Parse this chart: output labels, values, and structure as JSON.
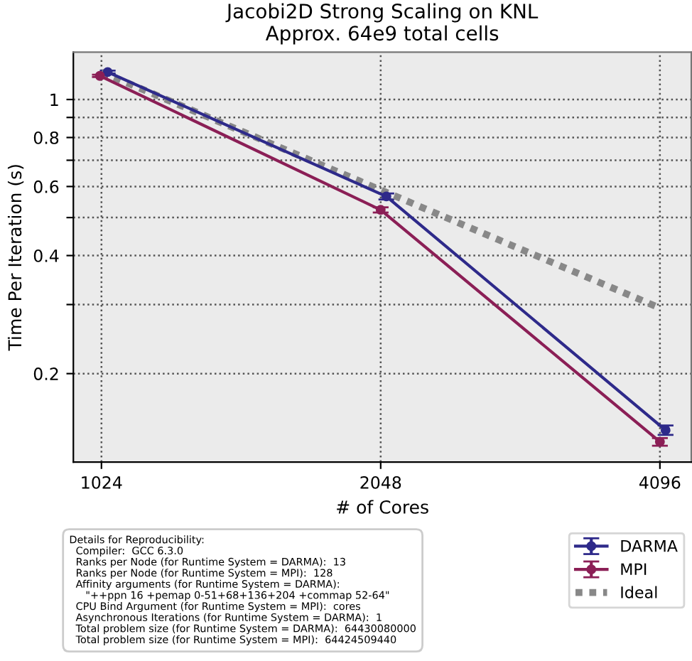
{
  "chart_data": {
    "type": "line",
    "title": "Jacobi2D Strong Scaling on KNL\nApprox. 64e9 total cells",
    "xlabel": "# of Cores",
    "ylabel": "Time Per Iteration (s)",
    "log": "xy",
    "xlim": [
      955,
      4428
    ],
    "xticks": [
      1024,
      2048,
      4096
    ],
    "ylim": [
      0.119,
      1.32
    ],
    "yticks": [
      {
        "value": 0.2,
        "label": "0.2"
      },
      {
        "value": 0.3,
        "label": null
      },
      {
        "value": 0.4,
        "label": "0.4"
      },
      {
        "value": 0.5,
        "label": null
      },
      {
        "value": 0.6,
        "label": "0.6"
      },
      {
        "value": 0.7,
        "label": null
      },
      {
        "value": 0.8,
        "label": "0.8"
      },
      {
        "value": 0.9,
        "label": null
      },
      {
        "value": 1,
        "label": "1"
      }
    ],
    "grid": true,
    "legend": "bottom right",
    "series": [
      {
        "name": "DARMA",
        "color": "#2e2a8a",
        "x": [
          1040,
          2077,
          4154
        ],
        "marker": "circle",
        "values": [
          1.175,
          0.566,
          0.1435
        ],
        "errors": [
          0.01,
          0.01,
          0.004
        ]
      },
      {
        "name": "MPI",
        "color": "#8b1f56",
        "x": [
          1020,
          2048,
          4096
        ],
        "marker": "circle",
        "values": [
          1.149,
          0.523,
          0.134
        ],
        "errors": [
          0.008,
          0.008,
          0.003
        ]
      },
      {
        "name": "Ideal",
        "color": "#888888",
        "type": "line",
        "line_style": "dotted",
        "x": [
          1024,
          2048,
          4096
        ],
        "values": [
          1.175,
          0.588,
          0.294
        ]
      }
    ],
    "annotations": [
      "Details for Reproducibility:\n  Compiler:  GCC 6.3.0\n  Ranks per Node (for Runtime System = DARMA):  13\n  Ranks per Node (for Runtime System = MPI):  128\n  Affinity arguments (for Runtime System = DARMA):\n     \"++ppn 16 +pemap 0-51+68+136+204 +commap 52-64\"\n  CPU Bind Argument (for Runtime System = MPI):  cores\n  Asynchronous Iterations (for Runtime System = DARMA):  1\n  Total problem size (for Runtime System = DARMA):  64430080000\n  Total problem size (for Runtime System = MPI):  64424509440"
    ]
  }
}
